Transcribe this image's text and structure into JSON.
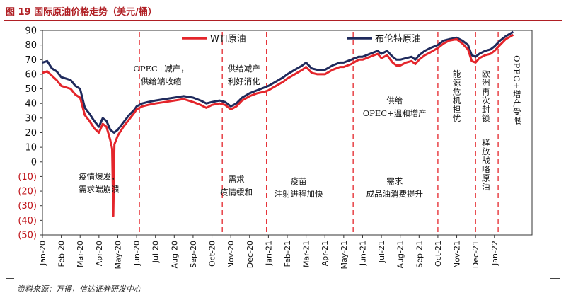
{
  "header": {
    "title": "图 19  国际原油价格走势（美元/桶）"
  },
  "footer": {
    "source": "资料来源：万得，信达证券研发中心"
  },
  "chart_data": {
    "type": "line",
    "ylim": [
      -50,
      90
    ],
    "yticks": [
      {
        "value": 90,
        "label": "90",
        "negative": false
      },
      {
        "value": 80,
        "label": "80",
        "negative": false
      },
      {
        "value": 70,
        "label": "70",
        "negative": false
      },
      {
        "value": 60,
        "label": "60",
        "negative": false
      },
      {
        "value": 50,
        "label": "50",
        "negative": false
      },
      {
        "value": 40,
        "label": "40",
        "negative": false
      },
      {
        "value": 30,
        "label": "30",
        "negative": false
      },
      {
        "value": 20,
        "label": "20",
        "negative": false
      },
      {
        "value": 10,
        "label": "10",
        "negative": false
      },
      {
        "value": 0,
        "label": "0",
        "negative": false
      },
      {
        "value": -10,
        "label": "(10)",
        "negative": true
      },
      {
        "value": -20,
        "label": "(20)",
        "negative": true
      },
      {
        "value": -30,
        "label": "(30)",
        "negative": true
      },
      {
        "value": -40,
        "label": "(40)",
        "negative": true
      },
      {
        "value": -50,
        "label": "(50)",
        "negative": true
      }
    ],
    "xlim": [
      0,
      26
    ],
    "xticks": [
      {
        "x": 0,
        "label": "Jan-20"
      },
      {
        "x": 1,
        "label": "Feb-20"
      },
      {
        "x": 2,
        "label": "Mar-20"
      },
      {
        "x": 3,
        "label": "Apr-20"
      },
      {
        "x": 4,
        "label": "May-20"
      },
      {
        "x": 5,
        "label": "Jun-20"
      },
      {
        "x": 6,
        "label": "Jul-20"
      },
      {
        "x": 7,
        "label": "Aug-20"
      },
      {
        "x": 8,
        "label": "Sep-20"
      },
      {
        "x": 9,
        "label": "Oct-20"
      },
      {
        "x": 10,
        "label": "Nov-20"
      },
      {
        "x": 11,
        "label": "Dec-20"
      },
      {
        "x": 12,
        "label": "Jan-21"
      },
      {
        "x": 13,
        "label": "Feb-21"
      },
      {
        "x": 14,
        "label": "Mar-21"
      },
      {
        "x": 15,
        "label": "Apr-21"
      },
      {
        "x": 16,
        "label": "May-21"
      },
      {
        "x": 17,
        "label": "Jun-21"
      },
      {
        "x": 18,
        "label": "Jul-21"
      },
      {
        "x": 19,
        "label": "Aug-21"
      },
      {
        "x": 20,
        "label": "Sep-21"
      },
      {
        "x": 21,
        "label": "Oct-21"
      },
      {
        "x": 22,
        "label": "Nov-21"
      },
      {
        "x": 23,
        "label": "Dec-21"
      },
      {
        "x": 24,
        "label": "Jan-22"
      }
    ],
    "series": [
      {
        "name": "布伦特原油",
        "color": "#1f2a5c",
        "points": [
          [
            0,
            68
          ],
          [
            0.25,
            69
          ],
          [
            0.5,
            64
          ],
          [
            0.75,
            62
          ],
          [
            1,
            58
          ],
          [
            1.25,
            57
          ],
          [
            1.5,
            56
          ],
          [
            1.75,
            52
          ],
          [
            2,
            50
          ],
          [
            2.25,
            37
          ],
          [
            2.5,
            33
          ],
          [
            2.75,
            28
          ],
          [
            3,
            24
          ],
          [
            3.2,
            30
          ],
          [
            3.4,
            28
          ],
          [
            3.6,
            22
          ],
          [
            3.8,
            20
          ],
          [
            4,
            22
          ],
          [
            4.3,
            27
          ],
          [
            4.6,
            32
          ],
          [
            4.9,
            36
          ],
          [
            5,
            38
          ],
          [
            5.3,
            40
          ],
          [
            5.6,
            41
          ],
          [
            6,
            42
          ],
          [
            6.5,
            43
          ],
          [
            7,
            44
          ],
          [
            7.5,
            45
          ],
          [
            8,
            44
          ],
          [
            8.4,
            42
          ],
          [
            8.7,
            40
          ],
          [
            9,
            41
          ],
          [
            9.4,
            42
          ],
          [
            9.7,
            41
          ],
          [
            10,
            38
          ],
          [
            10.3,
            40
          ],
          [
            10.6,
            44
          ],
          [
            11,
            47
          ],
          [
            11.4,
            49
          ],
          [
            11.8,
            51
          ],
          [
            12,
            52
          ],
          [
            12.4,
            55
          ],
          [
            12.8,
            58
          ],
          [
            13,
            60
          ],
          [
            13.4,
            63
          ],
          [
            13.8,
            66
          ],
          [
            14,
            68
          ],
          [
            14.3,
            64
          ],
          [
            14.6,
            63
          ],
          [
            15,
            63
          ],
          [
            15.4,
            66
          ],
          [
            15.8,
            68
          ],
          [
            16,
            68
          ],
          [
            16.4,
            70
          ],
          [
            16.8,
            72
          ],
          [
            17,
            72
          ],
          [
            17.4,
            74
          ],
          [
            17.8,
            76
          ],
          [
            18,
            74
          ],
          [
            18.3,
            76
          ],
          [
            18.6,
            72
          ],
          [
            18.8,
            70
          ],
          [
            19,
            70
          ],
          [
            19.3,
            71
          ],
          [
            19.6,
            72
          ],
          [
            19.8,
            70
          ],
          [
            20,
            73
          ],
          [
            20.3,
            76
          ],
          [
            20.6,
            78
          ],
          [
            21,
            80
          ],
          [
            21.3,
            83
          ],
          [
            21.6,
            84
          ],
          [
            22,
            85
          ],
          [
            22.3,
            83
          ],
          [
            22.6,
            80
          ],
          [
            22.8,
            73
          ],
          [
            23,
            72
          ],
          [
            23.2,
            74
          ],
          [
            23.5,
            76
          ],
          [
            23.8,
            77
          ],
          [
            24,
            79
          ],
          [
            24.3,
            83
          ],
          [
            24.6,
            86
          ],
          [
            25,
            89
          ]
        ]
      },
      {
        "name": "WTI原油",
        "color": "#e4252b",
        "points": [
          [
            0,
            61
          ],
          [
            0.25,
            62
          ],
          [
            0.5,
            59
          ],
          [
            0.75,
            56
          ],
          [
            1,
            52
          ],
          [
            1.25,
            51
          ],
          [
            1.5,
            50
          ],
          [
            1.75,
            46
          ],
          [
            2,
            44
          ],
          [
            2.25,
            32
          ],
          [
            2.5,
            28
          ],
          [
            2.75,
            23
          ],
          [
            3,
            20
          ],
          [
            3.2,
            26
          ],
          [
            3.4,
            24
          ],
          [
            3.6,
            15
          ],
          [
            3.7,
            9
          ],
          [
            3.76,
            -37
          ],
          [
            3.82,
            12
          ],
          [
            4,
            18
          ],
          [
            4.3,
            24
          ],
          [
            4.6,
            29
          ],
          [
            4.9,
            34
          ],
          [
            5,
            36
          ],
          [
            5.3,
            38
          ],
          [
            5.6,
            39
          ],
          [
            6,
            40
          ],
          [
            6.5,
            41
          ],
          [
            7,
            42
          ],
          [
            7.5,
            43
          ],
          [
            8,
            41
          ],
          [
            8.4,
            39
          ],
          [
            8.7,
            37
          ],
          [
            9,
            39
          ],
          [
            9.4,
            40
          ],
          [
            9.7,
            39
          ],
          [
            10,
            36
          ],
          [
            10.3,
            38
          ],
          [
            10.6,
            42
          ],
          [
            11,
            45
          ],
          [
            11.4,
            47
          ],
          [
            11.8,
            48
          ],
          [
            12,
            49
          ],
          [
            12.4,
            52
          ],
          [
            12.8,
            55
          ],
          [
            13,
            57
          ],
          [
            13.4,
            60
          ],
          [
            13.8,
            63
          ],
          [
            14,
            65
          ],
          [
            14.3,
            61
          ],
          [
            14.6,
            60
          ],
          [
            15,
            60
          ],
          [
            15.4,
            63
          ],
          [
            15.8,
            65
          ],
          [
            16,
            65
          ],
          [
            16.4,
            67
          ],
          [
            16.8,
            70
          ],
          [
            17,
            70
          ],
          [
            17.4,
            72
          ],
          [
            17.8,
            74
          ],
          [
            18,
            71
          ],
          [
            18.3,
            73
          ],
          [
            18.6,
            68
          ],
          [
            18.8,
            66
          ],
          [
            19,
            66
          ],
          [
            19.3,
            68
          ],
          [
            19.6,
            69
          ],
          [
            19.8,
            67
          ],
          [
            20,
            70
          ],
          [
            20.3,
            73
          ],
          [
            20.6,
            75
          ],
          [
            21,
            78
          ],
          [
            21.3,
            81
          ],
          [
            21.6,
            83
          ],
          [
            22,
            84
          ],
          [
            22.3,
            81
          ],
          [
            22.6,
            77
          ],
          [
            22.8,
            69
          ],
          [
            23,
            68
          ],
          [
            23.2,
            71
          ],
          [
            23.5,
            73
          ],
          [
            23.8,
            74
          ],
          [
            24,
            76
          ],
          [
            24.3,
            80
          ],
          [
            24.6,
            84
          ],
          [
            25,
            87
          ]
        ]
      }
    ],
    "legend": [
      {
        "label": "WTI原油",
        "color": "#e4252b"
      },
      {
        "label": "布伦特原油",
        "color": "#1f2a5c"
      }
    ],
    "dividers": [
      5.15,
      9.55,
      11.9,
      16.5,
      21.0,
      23.0,
      24.2
    ],
    "annotations": [
      {
        "x": 3.0,
        "y": -12,
        "lines": [
          "疫情爆发，",
          "需求端崩溃"
        ]
      },
      {
        "x": 6.3,
        "y": 62,
        "lines": [
          "OPEC+减产，",
          "供给端收缩"
        ]
      },
      {
        "x": 10.7,
        "y": 62,
        "lines": [
          "供给减产",
          "利好消化"
        ]
      },
      {
        "x": 10.3,
        "y": -14,
        "lines": [
          "需求",
          "疫情缓和"
        ]
      },
      {
        "x": 13.6,
        "y": -15,
        "lines": [
          "疫苗",
          "注射进程加快"
        ]
      },
      {
        "x": 18.7,
        "y": 40,
        "lines": [
          "供给",
          "OPEC+温和增产"
        ]
      },
      {
        "x": 18.7,
        "y": -15,
        "lines": [
          "需求",
          "成品油消费提升"
        ]
      },
      {
        "x": 22.0,
        "y": 45,
        "vertical": "能源危机担忧"
      },
      {
        "x": 23.55,
        "y": 45,
        "vertical": "欧洲再次封锁"
      },
      {
        "x": 23.55,
        "y": -2,
        "vertical": "释放战略原油"
      },
      {
        "x": 25.2,
        "y": 49,
        "vertical": "OPEC+增产受限"
      }
    ]
  }
}
